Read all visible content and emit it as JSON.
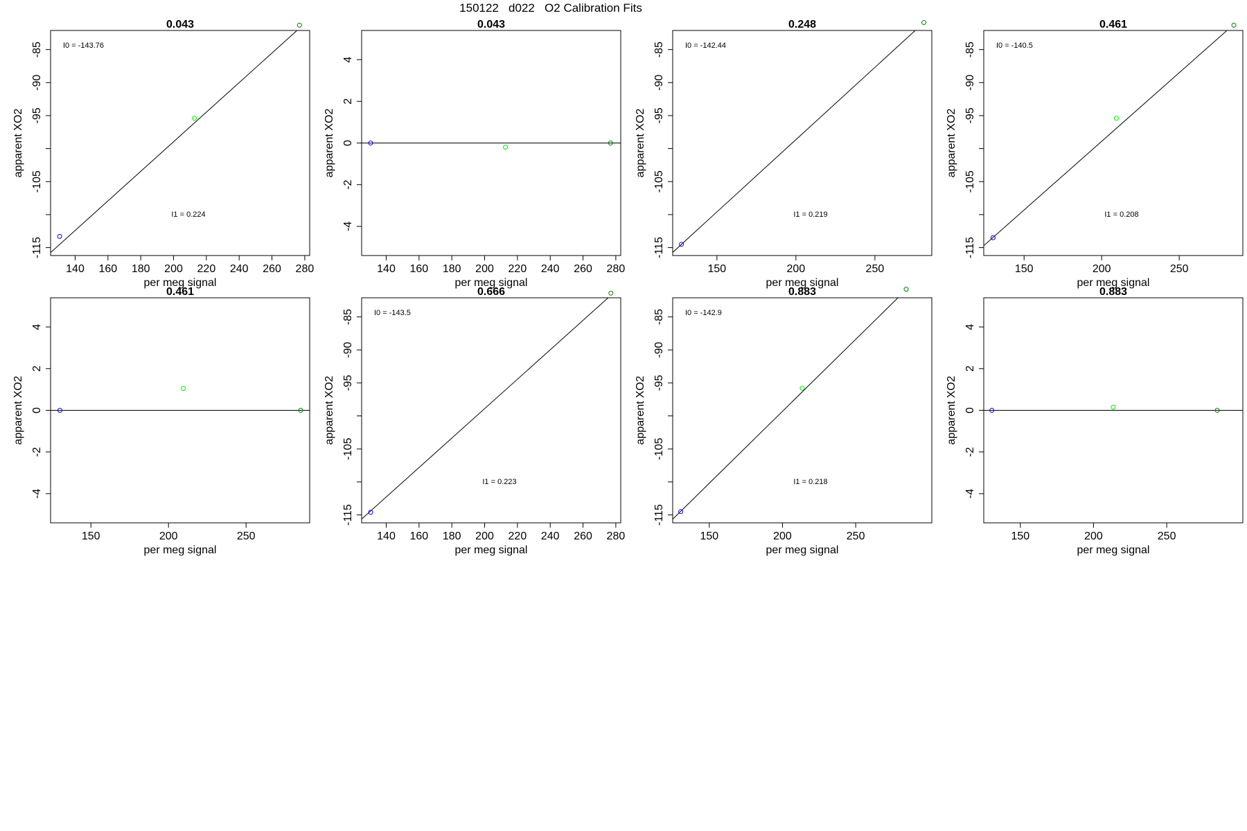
{
  "page": {
    "title": "150122   d022   O2 Calibration Fits"
  },
  "colors": {
    "axis": "#000000",
    "fit_line": "#000000",
    "low_point": "#0000ff",
    "mid_point": "#00ee00",
    "high_point": "#008000"
  },
  "chart_data": [
    {
      "type": "scatter",
      "title": "0.043",
      "xlabel": "per meg signal",
      "ylabel": "apparent XO2",
      "xlim": [
        125,
        283
      ],
      "ylim": [
        -116.2,
        -82.1
      ],
      "xticks": [
        140,
        160,
        180,
        200,
        220,
        240,
        260,
        280
      ],
      "yticks": [
        -85,
        -90,
        -95,
        -105,
        -115
      ],
      "ytick_mark_values": [
        -85,
        -90,
        -95,
        -100,
        -105,
        -110,
        -115
      ],
      "points": [
        {
          "x": 130.5,
          "y": -113.3,
          "role": "low"
        },
        {
          "x": 212.7,
          "y": -95.4,
          "role": "mid"
        },
        {
          "x": 276.8,
          "y": -81.3,
          "role": "high"
        }
      ],
      "fit_line": {
        "intercept": -143.76,
        "slope": 0.224
      },
      "annotations": [
        "I0 =  -143.76",
        "I1 =  0.224"
      ]
    },
    {
      "type": "scatter",
      "title": "0.043",
      "xlabel": "per meg signal",
      "ylabel": "apparent XO2",
      "xlim": [
        125,
        283
      ],
      "ylim": [
        -5.4,
        5.4
      ],
      "xticks": [
        140,
        160,
        180,
        200,
        220,
        240,
        260,
        280
      ],
      "yticks": [
        4,
        2,
        0,
        -2,
        -4
      ],
      "points": [
        {
          "x": 130.5,
          "y": 0,
          "role": "low"
        },
        {
          "x": 212.7,
          "y": -0.2,
          "role": "mid"
        },
        {
          "x": 276.8,
          "y": 0,
          "role": "high"
        }
      ],
      "fit_line": {
        "intercept": 0,
        "slope": 0
      },
      "annotations": []
    },
    {
      "type": "scatter",
      "title": "0.248",
      "xlabel": "per meg signal",
      "ylabel": "apparent XO2",
      "xlim": [
        122,
        286
      ],
      "ylim": [
        -116.2,
        -82.1
      ],
      "xticks": [
        150,
        200,
        250
      ],
      "yticks": [
        -85,
        -90,
        -95,
        -105,
        -115
      ],
      "ytick_mark_values": [
        -85,
        -90,
        -95,
        -100,
        -105,
        -110,
        -115
      ],
      "points": [
        {
          "x": 127.5,
          "y": -114.5,
          "role": "low"
        },
        {
          "x": 281.0,
          "y": -80.9,
          "role": "high"
        }
      ],
      "fit_line": {
        "intercept": -142.44,
        "slope": 0.219
      },
      "annotations": [
        "I0 =  -142.44",
        "I1 =  0.219"
      ]
    },
    {
      "type": "scatter",
      "title": "0.461",
      "xlabel": "per meg signal",
      "ylabel": "apparent XO2",
      "xlim": [
        124,
        291
      ],
      "ylim": [
        -116.2,
        -82.1
      ],
      "xticks": [
        150,
        200,
        250
      ],
      "yticks": [
        -85,
        -90,
        -95,
        -105,
        -115
      ],
      "ytick_mark_values": [
        -85,
        -90,
        -95,
        -100,
        -105,
        -110,
        -115
      ],
      "points": [
        {
          "x": 130.0,
          "y": -113.5,
          "role": "low"
        },
        {
          "x": 209.5,
          "y": -95.4,
          "role": "mid"
        },
        {
          "x": 285.2,
          "y": -81.3,
          "role": "high"
        }
      ],
      "fit_line": {
        "intercept": -140.5,
        "slope": 0.208
      },
      "annotations": [
        "I0 =  -140.5",
        "I1 =  0.208"
      ]
    },
    {
      "type": "scatter",
      "title": "0.461",
      "xlabel": "per meg signal",
      "ylabel": "apparent XO2",
      "xlim": [
        124,
        291
      ],
      "ylim": [
        -5.4,
        5.4
      ],
      "xticks": [
        150,
        200,
        250
      ],
      "yticks": [
        4,
        2,
        0,
        -2,
        -4
      ],
      "points": [
        {
          "x": 130.0,
          "y": 0,
          "role": "low"
        },
        {
          "x": 209.5,
          "y": 1.05,
          "role": "mid"
        },
        {
          "x": 285.2,
          "y": 0,
          "role": "high"
        }
      ],
      "fit_line": {
        "intercept": 0,
        "slope": 0
      },
      "annotations": []
    },
    {
      "type": "scatter",
      "title": "0.666",
      "xlabel": "per meg signal",
      "ylabel": "apparent XO2",
      "xlim": [
        125,
        283
      ],
      "ylim": [
        -116.2,
        -82.1
      ],
      "xticks": [
        140,
        160,
        180,
        200,
        220,
        240,
        260,
        280
      ],
      "yticks": [
        -85,
        -90,
        -95,
        -105,
        -115
      ],
      "ytick_mark_values": [
        -85,
        -90,
        -95,
        -100,
        -105,
        -110,
        -115
      ],
      "points": [
        {
          "x": 130.5,
          "y": -114.6,
          "role": "low"
        },
        {
          "x": 277.0,
          "y": -81.4,
          "role": "high"
        }
      ],
      "fit_line": {
        "intercept": -143.5,
        "slope": 0.223
      },
      "annotations": [
        "I0 =  -143.5",
        "I1 =  0.223"
      ]
    },
    {
      "type": "scatter",
      "title": "0.883",
      "xlabel": "per meg signal",
      "ylabel": "apparent XO2",
      "xlim": [
        125,
        302
      ],
      "ylim": [
        -116.2,
        -82.1
      ],
      "xticks": [
        150,
        200,
        250
      ],
      "yticks": [
        -85,
        -90,
        -95,
        -105,
        -115
      ],
      "ytick_mark_values": [
        -85,
        -90,
        -95,
        -100,
        -105,
        -110,
        -115
      ],
      "points": [
        {
          "x": 130.5,
          "y": -114.5,
          "role": "low"
        },
        {
          "x": 213.5,
          "y": -95.8,
          "role": "mid"
        },
        {
          "x": 284.5,
          "y": -80.8,
          "role": "high"
        }
      ],
      "fit_line": {
        "intercept": -142.9,
        "slope": 0.218
      },
      "annotations": [
        "I0 =  -142.9",
        "I1 =  0.218"
      ]
    },
    {
      "type": "scatter",
      "title": "0.883",
      "xlabel": "per meg signal",
      "ylabel": "apparent XO2",
      "xlim": [
        125,
        302
      ],
      "ylim": [
        -5.4,
        5.4
      ],
      "xticks": [
        150,
        200,
        250
      ],
      "yticks": [
        4,
        2,
        0,
        -2,
        -4
      ],
      "points": [
        {
          "x": 130.5,
          "y": 0,
          "role": "low"
        },
        {
          "x": 213.5,
          "y": 0.15,
          "role": "mid"
        },
        {
          "x": 284.5,
          "y": 0,
          "role": "high"
        }
      ],
      "fit_line": {
        "intercept": 0,
        "slope": 0
      },
      "annotations": []
    }
  ]
}
